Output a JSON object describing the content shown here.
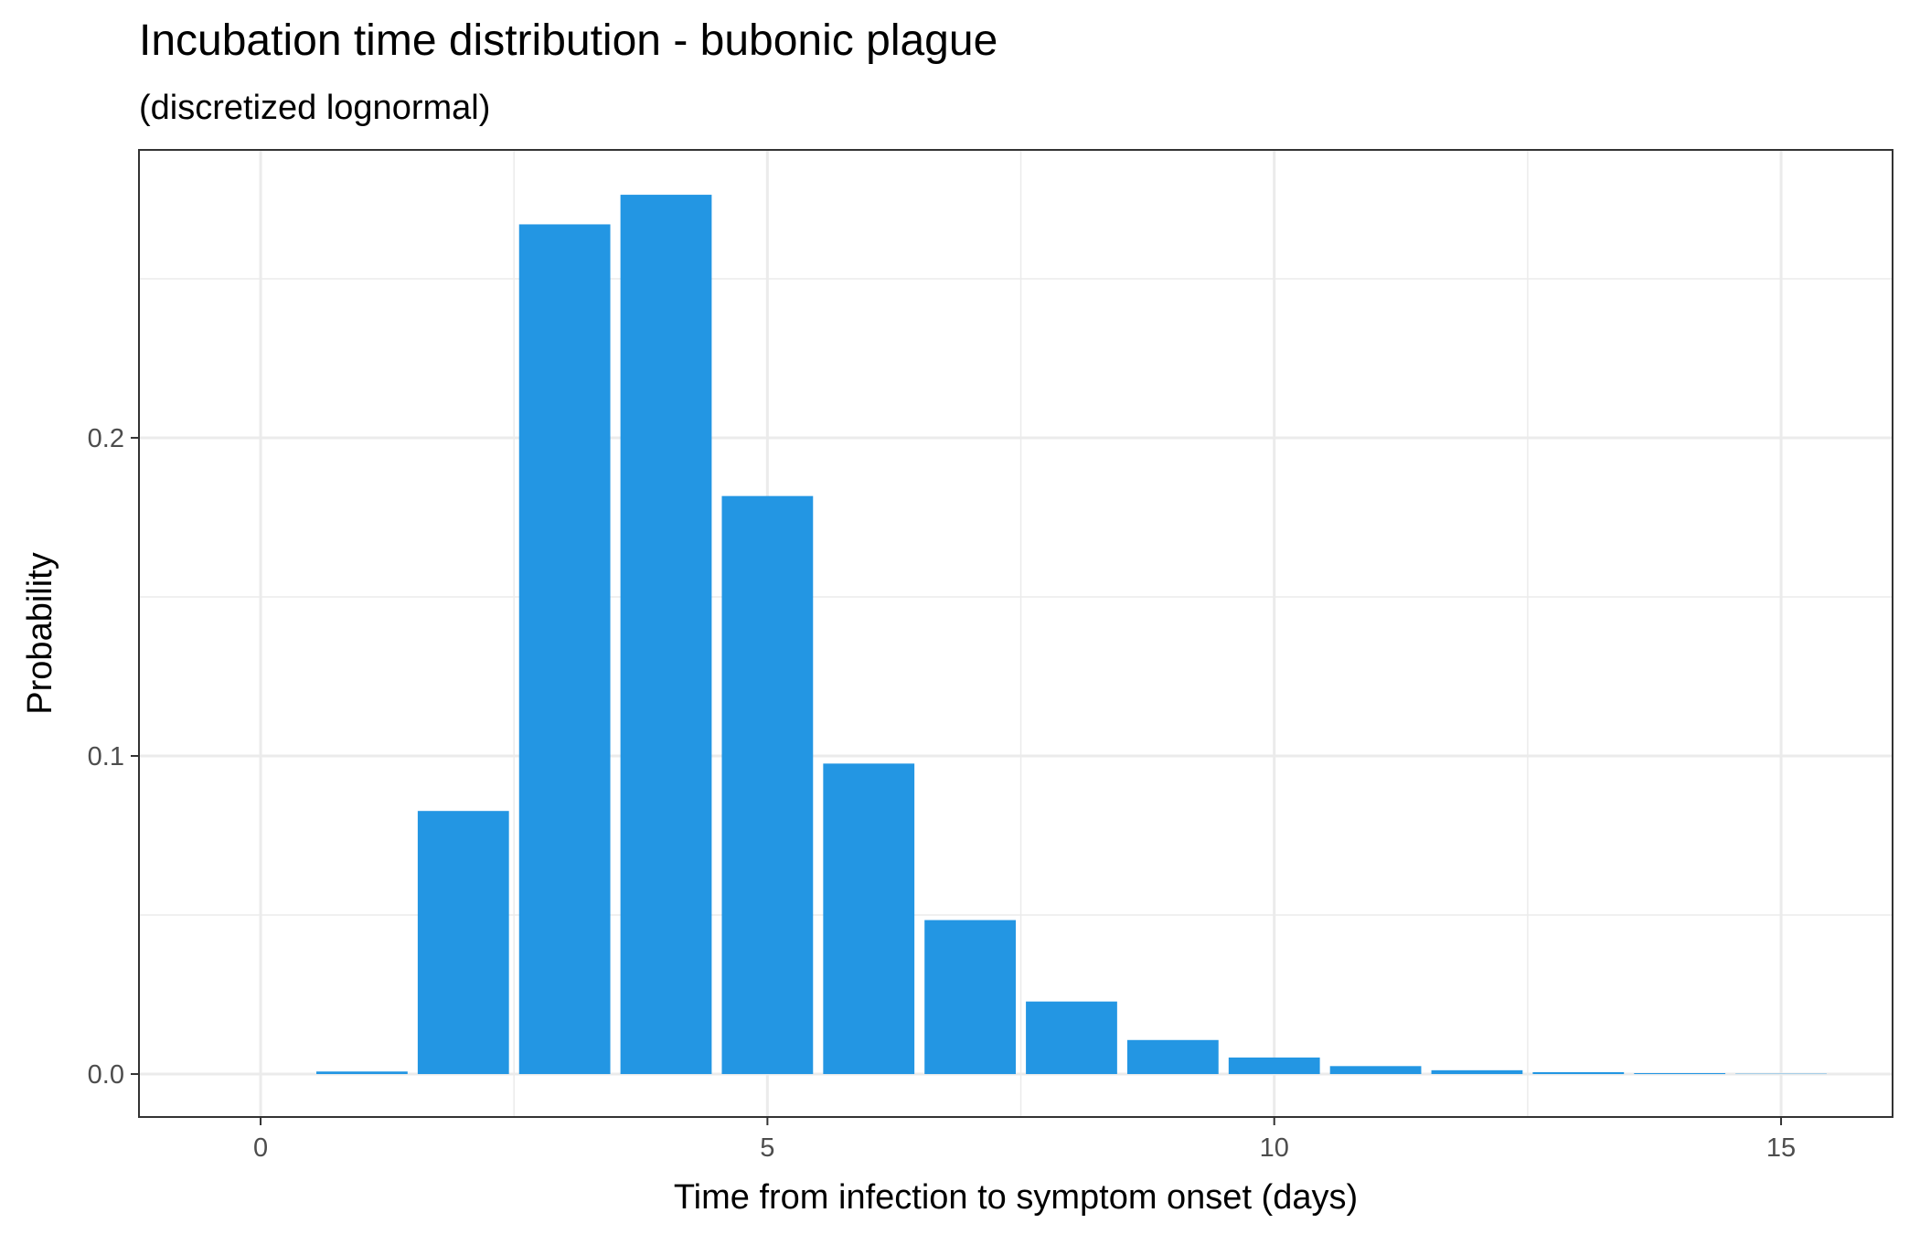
{
  "chart_data": {
    "type": "bar",
    "title": "Incubation time distribution - bubonic plague",
    "subtitle": "(discretized lognormal)",
    "xlabel": "Time from infection to symptom onset (days)",
    "ylabel": "Probability",
    "x": [
      0,
      1,
      2,
      3,
      4,
      5,
      6,
      7,
      8,
      9,
      10,
      11,
      12,
      13,
      14,
      15
    ],
    "values": [
      0.0,
      0.0008,
      0.0827,
      0.2671,
      0.2764,
      0.1817,
      0.0976,
      0.0484,
      0.0228,
      0.0107,
      0.0052,
      0.0025,
      0.0012,
      0.0006,
      0.0003,
      0.0001
    ],
    "xlim": [
      -1.2,
      16.1
    ],
    "ylim": [
      -0.0135,
      0.2905
    ],
    "x_ticks": [
      0,
      5,
      10,
      15
    ],
    "x_tick_labels": [
      "0",
      "5",
      "10",
      "15"
    ],
    "y_ticks": [
      0.0,
      0.1,
      0.2
    ],
    "y_tick_labels": [
      "0.0",
      "0.1",
      "0.2"
    ],
    "grid": true,
    "legend": "none",
    "bar_color": "#2396e3",
    "panel_background": "#ffffff",
    "grid_color": "#ebebeb",
    "border_color": "#333333"
  }
}
